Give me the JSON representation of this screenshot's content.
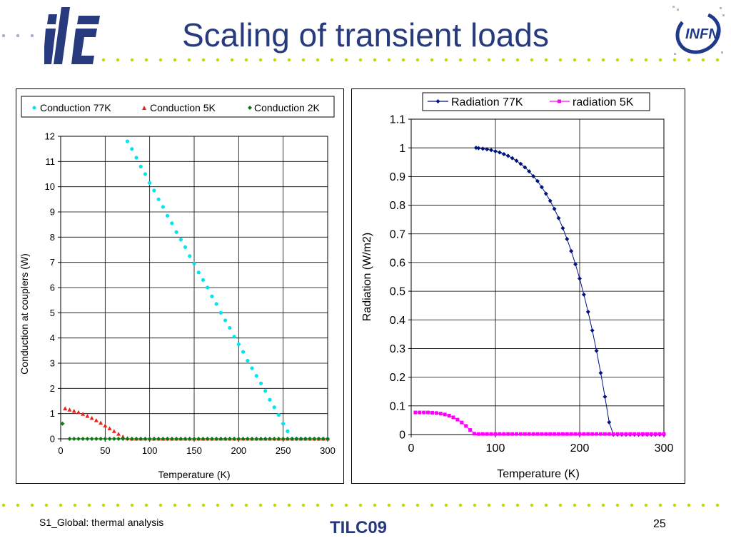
{
  "slide": {
    "title": "Scaling of transient loads",
    "footer_left": "S1_Global: thermal analysis",
    "footer_center": "TILC09",
    "page_number": "25"
  },
  "logos": {
    "left": "ilc",
    "right": "INFN"
  },
  "colors": {
    "title": "#283A7E",
    "dots": "#C8D400",
    "c77": "#00E5EE",
    "c5": "#E8231E",
    "c2": "#0A7A12",
    "r77": "#00137F",
    "r5": "#FF00FF"
  },
  "chart_data": [
    {
      "type": "scatter",
      "title": "",
      "xlabel": "Temperature (K)",
      "ylabel": "Conduction at couplers (W)",
      "xlim": [
        0,
        300
      ],
      "ylim": [
        0,
        12
      ],
      "xticks": [
        0,
        50,
        100,
        150,
        200,
        250,
        300
      ],
      "yticks": [
        0,
        1,
        2,
        3,
        4,
        5,
        6,
        7,
        8,
        9,
        10,
        11,
        12
      ],
      "grid": true,
      "legend_position": "top",
      "series": [
        {
          "name": "Conduction 77K",
          "color": "#00E5EE",
          "x": [
            75,
            80,
            85,
            90,
            95,
            100,
            105,
            110,
            115,
            120,
            125,
            130,
            135,
            140,
            145,
            150,
            155,
            160,
            165,
            170,
            175,
            180,
            185,
            190,
            195,
            200,
            205,
            210,
            215,
            220,
            225,
            230,
            235,
            240,
            245,
            250,
            255,
            260,
            265,
            270,
            275,
            280,
            285,
            290,
            295,
            300
          ],
          "y": [
            11.8,
            11.5,
            11.15,
            10.8,
            10.5,
            10.15,
            9.85,
            9.5,
            9.2,
            8.85,
            8.55,
            8.2,
            7.9,
            7.6,
            7.25,
            6.95,
            6.6,
            6.3,
            6.0,
            5.65,
            5.35,
            5.0,
            4.7,
            4.4,
            4.05,
            3.75,
            3.45,
            3.1,
            2.8,
            2.5,
            2.2,
            1.9,
            1.55,
            1.25,
            0.95,
            0.6,
            0.3,
            0.0,
            0.0,
            0.0,
            0.0,
            0.0,
            0.0,
            0.0,
            0.0,
            0.0
          ]
        },
        {
          "name": "Conduction 5K",
          "color": "#E8231E",
          "x": [
            5,
            10,
            15,
            20,
            25,
            30,
            35,
            40,
            45,
            50,
            55,
            60,
            65,
            70,
            75,
            80,
            85,
            90,
            95,
            100,
            105,
            110,
            115,
            120,
            125,
            130,
            135,
            140,
            145,
            150,
            155,
            160,
            165,
            170,
            175,
            180,
            185,
            190,
            195,
            200,
            205,
            210,
            215,
            220,
            225,
            230,
            235,
            240,
            245,
            250,
            255,
            260,
            265,
            270,
            275,
            280,
            285,
            290,
            295,
            300
          ],
          "y": [
            1.2,
            1.15,
            1.1,
            1.05,
            0.98,
            0.9,
            0.82,
            0.73,
            0.63,
            0.52,
            0.41,
            0.3,
            0.19,
            0.08,
            0.02,
            0,
            0,
            0,
            0,
            0,
            0,
            0,
            0,
            0,
            0,
            0,
            0,
            0,
            0,
            0,
            0,
            0,
            0,
            0,
            0,
            0,
            0,
            0,
            0,
            0,
            0,
            0,
            0,
            0,
            0,
            0,
            0,
            0,
            0,
            0,
            0,
            0,
            0,
            0,
            0,
            0,
            0,
            0,
            0,
            0
          ]
        },
        {
          "name": "Conduction 2K",
          "color": "#0A7A12",
          "x": [
            2,
            10,
            15,
            20,
            25,
            30,
            35,
            40,
            45,
            50,
            55,
            60,
            65,
            70,
            75,
            80,
            85,
            90,
            95,
            100,
            105,
            110,
            115,
            120,
            125,
            130,
            135,
            140,
            145,
            150,
            155,
            160,
            165,
            170,
            175,
            180,
            185,
            190,
            195,
            200,
            205,
            210,
            215,
            220,
            225,
            230,
            235,
            240,
            245,
            250,
            255,
            260,
            265,
            270,
            275,
            280,
            285,
            290,
            295,
            300
          ],
          "y": [
            0.6,
            0,
            0,
            0,
            0,
            0,
            0,
            0,
            0,
            0,
            0,
            0,
            0,
            0,
            0,
            0,
            0,
            0,
            0,
            0,
            0,
            0,
            0,
            0,
            0,
            0,
            0,
            0,
            0,
            0,
            0,
            0,
            0,
            0,
            0,
            0,
            0,
            0,
            0,
            0,
            0,
            0,
            0,
            0,
            0,
            0,
            0,
            0,
            0,
            0,
            0,
            0,
            0,
            0,
            0,
            0,
            0,
            0,
            0,
            0
          ]
        }
      ]
    },
    {
      "type": "line",
      "title": "",
      "xlabel": "Temperature (K)",
      "ylabel": "Radiation (W/m2)",
      "xlim": [
        0,
        300
      ],
      "ylim": [
        0,
        1.1
      ],
      "xticks": [
        0,
        100,
        200,
        300
      ],
      "yticks": [
        0,
        0.1,
        0.2,
        0.3,
        0.4,
        0.5,
        0.6,
        0.7,
        0.8,
        0.9,
        1,
        1.1
      ],
      "grid": true,
      "legend_position": "top",
      "series": [
        {
          "name": "Radiation 77K",
          "color": "#00137F",
          "x": [
            77,
            80,
            85,
            90,
            95,
            100,
            105,
            110,
            115,
            120,
            125,
            130,
            135,
            140,
            145,
            150,
            155,
            160,
            165,
            170,
            175,
            180,
            185,
            190,
            195,
            200,
            205,
            210,
            215,
            220,
            225,
            230,
            235,
            240,
            245,
            250,
            255,
            260,
            265,
            270,
            275,
            280,
            285,
            290,
            295,
            300
          ],
          "y": [
            1.0,
            0.999,
            0.997,
            0.995,
            0.992,
            0.988,
            0.984,
            0.978,
            0.972,
            0.964,
            0.955,
            0.944,
            0.932,
            0.918,
            0.901,
            0.884,
            0.863,
            0.84,
            0.815,
            0.787,
            0.755,
            0.72,
            0.682,
            0.64,
            0.594,
            0.544,
            0.488,
            0.428,
            0.363,
            0.292,
            0.215,
            0.132,
            0.043,
            0.0,
            0.0,
            0.0,
            0.0,
            0.0,
            0.0,
            0.0,
            0.0,
            0.0,
            0.0,
            0.0,
            0.0,
            0.0
          ]
        },
        {
          "name": "radiation 5K",
          "color": "#FF00FF",
          "x": [
            5,
            10,
            15,
            20,
            25,
            30,
            35,
            40,
            45,
            50,
            55,
            60,
            65,
            70,
            75,
            80,
            85,
            90,
            95,
            100,
            105,
            110,
            115,
            120,
            125,
            130,
            135,
            140,
            145,
            150,
            155,
            160,
            165,
            170,
            175,
            180,
            185,
            190,
            195,
            200,
            205,
            210,
            215,
            220,
            225,
            230,
            235,
            240,
            245,
            250,
            255,
            260,
            265,
            270,
            275,
            280,
            285,
            290,
            295,
            300
          ],
          "y": [
            0.077,
            0.077,
            0.077,
            0.077,
            0.076,
            0.075,
            0.073,
            0.07,
            0.066,
            0.06,
            0.052,
            0.042,
            0.03,
            0.016,
            0.003,
            0.002,
            0.002,
            0.002,
            0.002,
            0.002,
            0.002,
            0.002,
            0.002,
            0.002,
            0.002,
            0.002,
            0.002,
            0.002,
            0.002,
            0.002,
            0.002,
            0.002,
            0.002,
            0.002,
            0.002,
            0.002,
            0.002,
            0.002,
            0.002,
            0.002,
            0.002,
            0.002,
            0.002,
            0.002,
            0.002,
            0.002,
            0.002,
            0.002,
            0.002,
            0.002,
            0.002,
            0.002,
            0.002,
            0.002,
            0.002,
            0.002,
            0.002,
            0.002,
            0.002,
            0.002
          ]
        }
      ]
    }
  ]
}
